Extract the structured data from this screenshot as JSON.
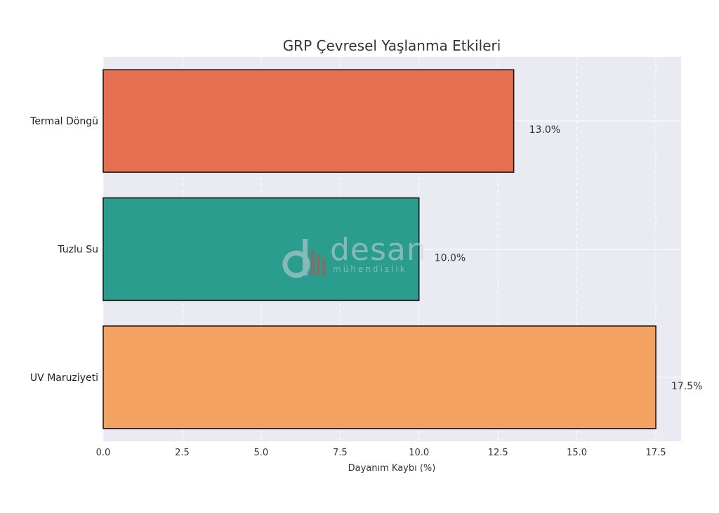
{
  "chart_data": {
    "type": "bar",
    "orientation": "horizontal",
    "title": "GRP Çevresel Yaşlanma Etkileri",
    "xlabel": "Dayanım Kaybı (%)",
    "ylabel": "",
    "categories": [
      "Termal Döngü",
      "Tuzlu Su",
      "UV Maruziyeti"
    ],
    "values": [
      13.0,
      10.0,
      17.5
    ],
    "data_labels": [
      "13.0%",
      "10.0%",
      "17.5%"
    ],
    "colors": [
      "#e76f51",
      "#2a9d8f",
      "#f4a261"
    ],
    "xlim": [
      0,
      18.3
    ],
    "xticks": [
      0,
      2.5,
      5,
      7.5,
      10,
      12.5,
      15,
      17.5
    ],
    "xtick_labels": [
      "0.0",
      "2.5",
      "5.0",
      "7.5",
      "10.0",
      "12.5",
      "15.0",
      "17.5"
    ],
    "grid": true,
    "background": "#eaeaf2"
  },
  "watermark": {
    "word": "desan",
    "sub": "mühendislik"
  }
}
